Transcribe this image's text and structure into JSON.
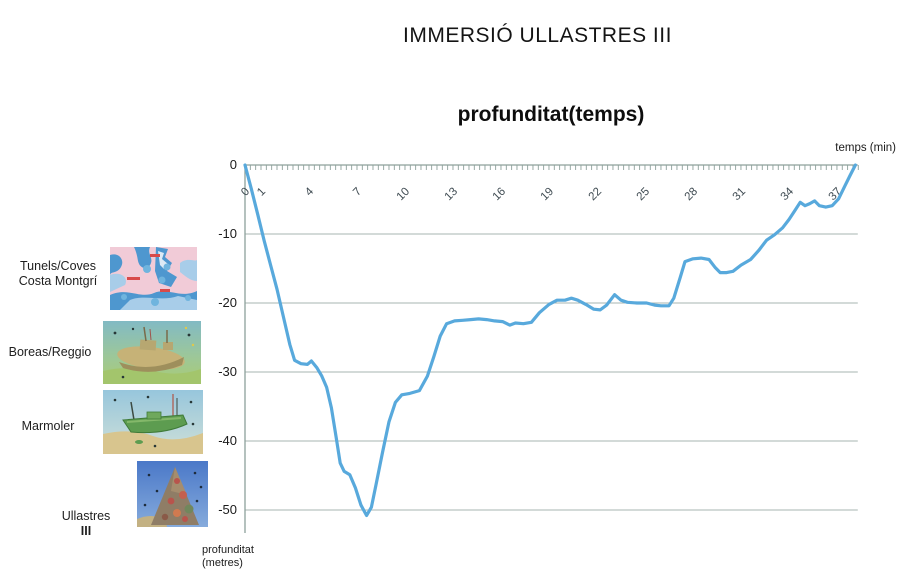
{
  "page_title": "IMMERSIÓ ULLASTRES III",
  "sidebar": {
    "items": [
      {
        "label": "Tunels/Coves\nCosta Montgrí",
        "image": "map-costa-montgri-thumbnail"
      },
      {
        "label": "Boreas/Reggio",
        "image": "boreas-wreck-thumbnail"
      },
      {
        "label": "Marmoler",
        "image": "marmoler-wreck-thumbnail"
      },
      {
        "label": "Ullastres",
        "label_bold": "III",
        "image": "ullastres-pinnacle-thumbnail"
      }
    ]
  },
  "chart_data": {
    "type": "line",
    "title": "profunditat(temps)",
    "xlabel": "temps (min)",
    "ylabel": "profunditat\n(metres)",
    "x_tick_labels": [
      "0",
      "1",
      "4",
      "7",
      "10",
      "13",
      "16",
      "19",
      "22",
      "25",
      "28",
      "31",
      "34",
      "37"
    ],
    "x_tick_minutes": [
      0,
      1,
      4,
      7,
      10,
      13,
      16,
      19,
      22,
      25,
      28,
      31,
      34,
      37
    ],
    "minor_tick_step_min": 0.3333,
    "y_tick_labels": [
      "0",
      "-10",
      "-20",
      "-30",
      "-40",
      "-50"
    ],
    "y_ticks": [
      0,
      -10,
      -20,
      -30,
      -40,
      -50
    ],
    "xlim": [
      0,
      38.3
    ],
    "ylim": [
      -53.3,
      0
    ],
    "grid": true,
    "legend": "none",
    "line_color": "#58a9dc",
    "grid_color": "#a7b6b1",
    "axis_color": "#8da09b",
    "series": [
      {
        "name": "profunditat (metres)",
        "points": [
          [
            0,
            0
          ],
          [
            0.4,
            -3.5
          ],
          [
            0.8,
            -7.2
          ],
          [
            1.2,
            -11
          ],
          [
            1.6,
            -14.5
          ],
          [
            2.0,
            -18
          ],
          [
            2.4,
            -22
          ],
          [
            2.8,
            -26
          ],
          [
            3.1,
            -28.3
          ],
          [
            3.5,
            -28.8
          ],
          [
            3.9,
            -28.9
          ],
          [
            4.15,
            -28.4
          ],
          [
            4.5,
            -29.4
          ],
          [
            4.8,
            -30.6
          ],
          [
            5.1,
            -32.2
          ],
          [
            5.4,
            -35.2
          ],
          [
            5.7,
            -39.5
          ],
          [
            5.95,
            -43.2
          ],
          [
            6.2,
            -44.4
          ],
          [
            6.55,
            -44.9
          ],
          [
            6.9,
            -46.8
          ],
          [
            7.25,
            -49.3
          ],
          [
            7.6,
            -50.8
          ],
          [
            7.9,
            -49.6
          ],
          [
            8.2,
            -46.2
          ],
          [
            8.6,
            -41.6
          ],
          [
            9.0,
            -37.2
          ],
          [
            9.4,
            -34.4
          ],
          [
            9.8,
            -33.3
          ],
          [
            10.3,
            -33.1
          ],
          [
            10.9,
            -32.7
          ],
          [
            11.4,
            -30.6
          ],
          [
            11.8,
            -27.8
          ],
          [
            12.2,
            -24.8
          ],
          [
            12.6,
            -23.0
          ],
          [
            13.1,
            -22.6
          ],
          [
            13.6,
            -22.5
          ],
          [
            14.1,
            -22.4
          ],
          [
            14.6,
            -22.3
          ],
          [
            15.1,
            -22.4
          ],
          [
            15.6,
            -22.6
          ],
          [
            16.1,
            -22.7
          ],
          [
            16.55,
            -23.2
          ],
          [
            16.9,
            -22.9
          ],
          [
            17.4,
            -23.0
          ],
          [
            17.9,
            -22.8
          ],
          [
            18.4,
            -21.4
          ],
          [
            19.0,
            -20.2
          ],
          [
            19.5,
            -19.6
          ],
          [
            20.0,
            -19.6
          ],
          [
            20.4,
            -19.3
          ],
          [
            20.8,
            -19.6
          ],
          [
            21.3,
            -20.2
          ],
          [
            21.8,
            -20.9
          ],
          [
            22.2,
            -21.0
          ],
          [
            22.6,
            -20.3
          ],
          [
            23.1,
            -18.8
          ],
          [
            23.5,
            -19.6
          ],
          [
            23.9,
            -19.9
          ],
          [
            24.5,
            -20.0
          ],
          [
            25.1,
            -20.0
          ],
          [
            25.6,
            -20.3
          ],
          [
            26.0,
            -20.4
          ],
          [
            26.5,
            -20.4
          ],
          [
            26.8,
            -19.3
          ],
          [
            27.2,
            -16.3
          ],
          [
            27.5,
            -14.0
          ],
          [
            28.0,
            -13.6
          ],
          [
            28.5,
            -13.5
          ],
          [
            29.0,
            -13.7
          ],
          [
            29.4,
            -14.9
          ],
          [
            29.7,
            -15.6
          ],
          [
            30.1,
            -15.6
          ],
          [
            30.5,
            -15.4
          ],
          [
            31.0,
            -14.5
          ],
          [
            31.6,
            -13.7
          ],
          [
            32.1,
            -12.4
          ],
          [
            32.6,
            -10.9
          ],
          [
            33.1,
            -10.1
          ],
          [
            33.6,
            -9.1
          ],
          [
            34.0,
            -7.9
          ],
          [
            34.4,
            -6.5
          ],
          [
            34.7,
            -5.4
          ],
          [
            35.0,
            -5.9
          ],
          [
            35.3,
            -5.6
          ],
          [
            35.6,
            -5.2
          ],
          [
            35.9,
            -5.9
          ],
          [
            36.3,
            -6.1
          ],
          [
            36.7,
            -5.9
          ],
          [
            37.1,
            -4.9
          ],
          [
            37.5,
            -3.0
          ],
          [
            37.8,
            -1.6
          ],
          [
            38.15,
            0
          ]
        ]
      }
    ]
  }
}
